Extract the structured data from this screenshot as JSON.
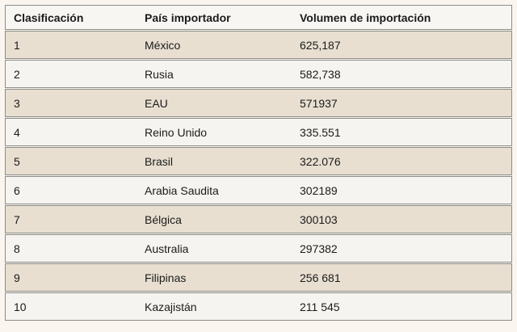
{
  "page": {
    "background_color": "#faf6ef",
    "row_odd_color": "#e8dfd1",
    "row_even_color": "#f6f4f0",
    "header_bg_color": "#f7f6f3",
    "border_color": "#8d8c87",
    "text_color": "#1b1b1b"
  },
  "table": {
    "columns": {
      "rank": "Clasificación",
      "country": "País importador",
      "volume": "Volumen de importación"
    },
    "rows": [
      {
        "rank": "1",
        "country": "México",
        "volume": "625,187"
      },
      {
        "rank": "2",
        "country": "Rusia",
        "volume": "582,738"
      },
      {
        "rank": "3",
        "country": "EAU",
        "volume": "571937"
      },
      {
        "rank": "4",
        "country": "Reino Unido",
        "volume": "335.551"
      },
      {
        "rank": "5",
        "country": "Brasil",
        "volume": "322.076"
      },
      {
        "rank": "6",
        "country": "Arabia Saudita",
        "volume": "302189"
      },
      {
        "rank": "7",
        "country": "Bélgica",
        "volume": "300103"
      },
      {
        "rank": "8",
        "country": "Australia",
        "volume": "297382"
      },
      {
        "rank": "9",
        "country": "Filipinas",
        "volume": "256 681"
      },
      {
        "rank": "10",
        "country": "Kazajistán",
        "volume": "211 545"
      }
    ]
  }
}
